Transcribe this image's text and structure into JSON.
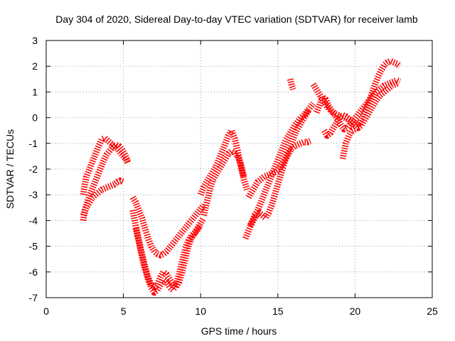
{
  "chart_data": {
    "type": "scatter",
    "title": "Day 304 of 2020, Sidereal Day-to-day VTEC variation (SDTVAR) for receiver lamb",
    "xlabel": "GPS time / hours",
    "ylabel": "SDTVAR / TECUs",
    "xlim": [
      0,
      25
    ],
    "ylim": [
      -7,
      3
    ],
    "xticks": [
      "0",
      "5",
      "10",
      "15",
      "20",
      "25"
    ],
    "yticks": [
      "-7",
      "-6",
      "-5",
      "-4",
      "-3",
      "-2",
      "-1",
      "0",
      "1",
      "2",
      "3"
    ],
    "grid": true,
    "marker": "+",
    "color": "#ff0000",
    "series": [
      {
        "x": [
          2.4,
          2.5,
          2.6,
          2.8,
          3.0,
          3.2,
          3.4,
          3.6,
          3.8,
          4.0,
          4.2,
          4.4,
          4.6,
          4.8,
          5.0,
          5.2,
          5.3
        ],
        "y": [
          -3.0,
          -2.6,
          -2.3,
          -2.0,
          -1.7,
          -1.4,
          -1.1,
          -0.85,
          -0.8,
          -0.9,
          -1.0,
          -1.1,
          -1.2,
          -1.35,
          -1.5,
          -1.65,
          -1.8
        ]
      },
      {
        "x": [
          2.4,
          2.5,
          2.7,
          2.9,
          3.1,
          3.3,
          3.5,
          3.7,
          3.9,
          4.1,
          4.3,
          4.5,
          4.7,
          4.9,
          5.1,
          5.3
        ],
        "y": [
          -4.0,
          -3.6,
          -3.2,
          -2.9,
          -2.6,
          -2.3,
          -2.0,
          -1.7,
          -1.45,
          -1.3,
          -1.15,
          -1.05,
          -1.1,
          -1.25,
          -1.45,
          -1.7
        ]
      },
      {
        "x": [
          2.4,
          2.6,
          2.8,
          3.0,
          3.2,
          3.4,
          3.6,
          3.8,
          4.0,
          4.2,
          4.4,
          4.6,
          4.8,
          5.0
        ],
        "y": [
          -3.8,
          -3.5,
          -3.3,
          -3.1,
          -3.0,
          -2.9,
          -2.8,
          -2.75,
          -2.7,
          -2.65,
          -2.6,
          -2.5,
          -2.45,
          -2.5
        ]
      },
      {
        "x": [
          5.6,
          5.8,
          6.0,
          6.2,
          6.4,
          6.6,
          6.8,
          7.0,
          7.2,
          7.4,
          7.6,
          7.8,
          8.0,
          8.2,
          8.4,
          8.6,
          8.8,
          9.0,
          9.2,
          9.4,
          9.6,
          9.8,
          10.0,
          10.2
        ],
        "y": [
          -3.1,
          -3.3,
          -3.6,
          -3.9,
          -4.3,
          -4.7,
          -5.0,
          -5.2,
          -5.3,
          -5.35,
          -5.3,
          -5.2,
          -5.05,
          -4.9,
          -4.75,
          -4.6,
          -4.45,
          -4.3,
          -4.15,
          -4.0,
          -3.85,
          -3.7,
          -3.55,
          -3.4
        ]
      },
      {
        "x": [
          5.6,
          5.8,
          6.0,
          6.2,
          6.4,
          6.6,
          6.8,
          7.0,
          7.2,
          7.4,
          7.6,
          7.8,
          8.0,
          8.2,
          8.4,
          8.6,
          8.8,
          9.0,
          9.2,
          9.4,
          9.6,
          9.8,
          10.0
        ],
        "y": [
          -3.6,
          -4.2,
          -4.8,
          -5.4,
          -5.9,
          -6.3,
          -6.6,
          -6.8,
          -6.7,
          -6.5,
          -6.3,
          -6.4,
          -6.6,
          -6.7,
          -6.5,
          -6.1,
          -5.6,
          -5.1,
          -4.8,
          -4.6,
          -4.5,
          -4.35,
          -4.2
        ]
      },
      {
        "x": [
          5.8,
          6.0,
          6.2,
          6.4,
          6.6,
          6.8,
          7.0,
          7.2,
          7.4,
          7.6,
          7.8,
          8.0,
          8.2,
          8.4,
          8.6,
          8.8,
          9.0,
          9.2,
          9.4,
          9.6,
          9.8,
          10.0,
          10.2
        ],
        "y": [
          -4.3,
          -4.8,
          -5.3,
          -5.8,
          -6.2,
          -6.5,
          -6.6,
          -6.5,
          -6.2,
          -6.0,
          -6.1,
          -6.3,
          -6.5,
          -6.6,
          -6.4,
          -6.0,
          -5.5,
          -5.0,
          -4.7,
          -4.5,
          -4.3,
          -4.1,
          -3.9
        ]
      },
      {
        "x": [
          10.0,
          10.2,
          10.4,
          10.6,
          10.8,
          11.0,
          11.2,
          11.4,
          11.6,
          11.8,
          12.0,
          12.2,
          12.4,
          12.6,
          12.8,
          13.0
        ],
        "y": [
          -3.0,
          -2.7,
          -2.5,
          -2.3,
          -2.1,
          -1.9,
          -1.6,
          -1.3,
          -1.0,
          -0.7,
          -0.5,
          -0.8,
          -1.3,
          -1.9,
          -2.4,
          -2.8
        ]
      },
      {
        "x": [
          10.2,
          10.4,
          10.6,
          10.8,
          11.0,
          11.2,
          11.4,
          11.6,
          11.8,
          12.0,
          12.2,
          12.4,
          12.6,
          12.8
        ],
        "y": [
          -3.8,
          -3.3,
          -2.8,
          -2.4,
          -2.2,
          -2.0,
          -1.8,
          -1.6,
          -1.4,
          -1.3,
          -1.35,
          -1.5,
          -1.8,
          -2.3
        ]
      },
      {
        "x": [
          12.9,
          13.1,
          13.3,
          13.5,
          13.7,
          13.9,
          14.1,
          14.3,
          14.5,
          14.7,
          14.9,
          15.1,
          15.3,
          15.5,
          15.7,
          15.9,
          16.1,
          16.3,
          16.5,
          16.7,
          16.9,
          17.1,
          17.3
        ],
        "y": [
          -4.7,
          -4.4,
          -4.1,
          -3.8,
          -3.6,
          -3.3,
          -3.0,
          -2.7,
          -2.4,
          -2.1,
          -1.8,
          -1.5,
          -1.2,
          -0.9,
          -0.7,
          -0.5,
          -0.3,
          -0.15,
          0.0,
          0.1,
          0.25,
          0.4,
          0.55
        ]
      },
      {
        "x": [
          13.1,
          13.3,
          13.5,
          13.7,
          13.9,
          14.1,
          14.3,
          14.5,
          14.7,
          14.9,
          15.1,
          15.3,
          15.5,
          15.7,
          15.9,
          16.1,
          16.3,
          16.5,
          16.7,
          16.9,
          17.1
        ],
        "y": [
          -3.1,
          -2.9,
          -2.7,
          -2.5,
          -2.4,
          -2.3,
          -2.25,
          -2.2,
          -2.15,
          -2.1,
          -2.0,
          -1.8,
          -1.6,
          -1.4,
          -1.2,
          -1.1,
          -1.05,
          -1.0,
          -0.95,
          -0.95,
          -0.9
        ]
      },
      {
        "x": [
          13.2,
          13.4,
          13.6,
          13.8,
          14.0,
          14.2,
          14.4,
          14.6,
          14.8,
          15.0,
          15.2,
          15.4,
          15.6,
          15.8,
          16.0,
          16.2,
          16.4,
          16.6,
          16.8,
          17.0
        ],
        "y": [
          -4.2,
          -4.0,
          -3.8,
          -3.7,
          -3.8,
          -3.9,
          -3.7,
          -3.4,
          -3.0,
          -2.6,
          -2.2,
          -1.8,
          -1.4,
          -1.1,
          -0.8,
          -0.5,
          -0.3,
          -0.1,
          0.1,
          0.3
        ]
      },
      {
        "x": [
          15.8,
          15.9,
          16.0
        ],
        "y": [
          1.5,
          1.25,
          1.1
        ]
      },
      {
        "x": [
          17.3,
          17.5,
          17.7,
          17.9,
          18.1,
          18.3,
          18.5,
          18.7,
          18.9,
          19.1,
          19.3,
          19.5,
          19.7,
          19.9,
          20.1,
          20.3,
          20.5,
          20.7,
          20.9,
          21.1,
          21.3,
          21.5,
          21.7,
          21.9,
          22.1,
          22.3,
          22.5,
          22.7,
          22.9
        ],
        "y": [
          1.3,
          1.1,
          0.9,
          0.7,
          0.5,
          0.35,
          0.25,
          0.15,
          0.1,
          0.05,
          0.0,
          -0.05,
          -0.1,
          -0.2,
          -0.3,
          -0.2,
          0.0,
          0.3,
          0.6,
          0.95,
          1.3,
          1.6,
          1.85,
          2.05,
          2.15,
          2.2,
          2.15,
          2.1,
          2.0
        ]
      },
      {
        "x": [
          17.5,
          17.7,
          17.9,
          18.1,
          18.3,
          18.5,
          18.7,
          18.9,
          19.1,
          19.3,
          19.5,
          19.7,
          19.9,
          20.1,
          20.3,
          20.5,
          20.7,
          20.9,
          21.1,
          21.3,
          21.5,
          21.7,
          21.9,
          22.1,
          22.3,
          22.5,
          22.7,
          22.9
        ],
        "y": [
          0.2,
          0.5,
          0.8,
          0.7,
          0.45,
          0.25,
          0.1,
          -0.1,
          -0.3,
          -0.45,
          -0.4,
          -0.25,
          -0.1,
          0.05,
          0.2,
          0.35,
          0.5,
          0.65,
          0.8,
          0.95,
          1.05,
          1.15,
          1.25,
          1.3,
          1.35,
          1.4,
          1.45,
          1.4
        ]
      },
      {
        "x": [
          18.0,
          18.2,
          18.4,
          18.6,
          18.8,
          19.0,
          19.2,
          19.4,
          19.6,
          19.8,
          20.0,
          20.2,
          20.4,
          20.6,
          20.8,
          21.0,
          21.2,
          21.4,
          21.6,
          21.8,
          22.0,
          22.2,
          22.4,
          22.6,
          22.8
        ],
        "y": [
          -0.5,
          -0.7,
          -0.6,
          -0.4,
          -0.2,
          0.0,
          0.1,
          0.05,
          -0.05,
          -0.15,
          -0.3,
          -0.4,
          -0.3,
          -0.1,
          0.1,
          0.3,
          0.5,
          0.7,
          0.85,
          0.95,
          1.05,
          1.15,
          1.25,
          1.3,
          1.35
        ]
      },
      {
        "x": [
          19.2,
          19.3,
          19.4,
          19.6,
          19.8,
          20.0
        ],
        "y": [
          -1.6,
          -1.3,
          -1.0,
          -0.7,
          -0.5,
          -0.45
        ]
      }
    ]
  }
}
